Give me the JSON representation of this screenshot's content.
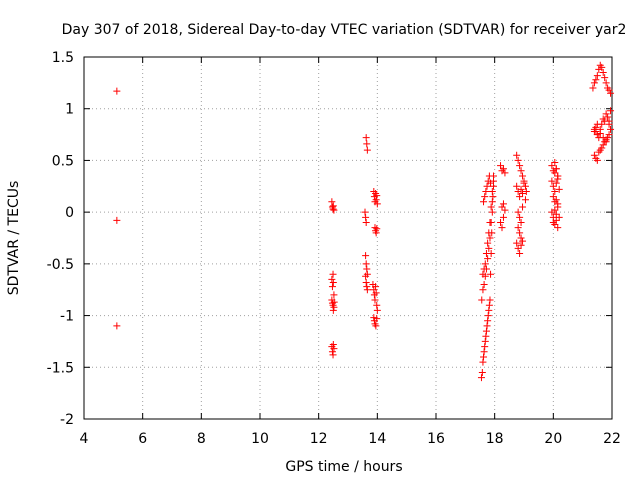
{
  "chart_data": {
    "type": "scatter",
    "title": "Day 307 of 2018, Sidereal Day-to-day VTEC variation (SDTVAR) for receiver yar2",
    "xlabel": "GPS time / hours",
    "ylabel": "SDTVAR / TECUs",
    "xlim": [
      4,
      22
    ],
    "ylim": [
      -2,
      1.5
    ],
    "x_ticks": [
      4,
      6,
      8,
      10,
      12,
      14,
      16,
      18,
      20,
      22
    ],
    "y_ticks": [
      -2,
      -1.5,
      -1,
      -0.5,
      0,
      0.5,
      1,
      1.5
    ],
    "x_tick_labels": [
      "4",
      "6",
      "8",
      "10",
      "12",
      "14",
      "16",
      "18",
      "20",
      "22"
    ],
    "y_tick_labels": [
      "-2",
      "-1.5",
      "-1",
      "-0.5",
      "0",
      "0.5",
      "1",
      "1.5"
    ],
    "grid": true,
    "marker": "+",
    "color": "#ff0000",
    "series": [
      {
        "name": "yar2",
        "x": [
          5.12,
          5.12,
          5.12,
          12.45,
          12.47,
          12.49,
          12.5,
          12.52,
          12.45,
          12.47,
          12.49,
          12.5,
          12.52,
          12.45,
          12.47,
          12.49,
          12.5,
          12.52,
          12.53,
          12.45,
          12.47,
          12.49,
          12.5,
          12.52,
          13.62,
          13.64,
          13.66,
          13.58,
          13.6,
          13.62,
          13.6,
          13.62,
          13.64,
          13.66,
          13.6,
          13.62,
          13.64,
          13.66,
          13.88,
          13.9,
          13.92,
          13.94,
          13.96,
          13.98,
          14.0,
          13.92,
          13.94,
          13.96,
          13.98,
          13.85,
          13.88,
          13.9,
          13.92,
          13.94,
          13.96,
          13.98,
          14.0,
          13.88,
          13.9,
          13.92,
          13.95,
          13.98,
          17.55,
          17.58,
          17.6,
          17.62,
          17.64,
          17.66,
          17.68,
          17.7,
          17.72,
          17.74,
          17.76,
          17.78,
          17.8,
          17.82,
          17.84,
          17.86,
          17.88,
          17.9,
          17.92,
          17.94,
          17.96,
          17.56,
          17.6,
          17.64,
          17.68,
          17.72,
          17.76,
          17.8,
          17.84,
          17.88,
          17.92,
          17.96,
          17.6,
          17.64,
          17.68,
          17.72,
          17.76,
          17.8,
          17.84,
          17.88,
          17.92,
          17.96,
          17.62,
          17.66,
          17.7,
          17.74,
          17.78,
          17.82,
          17.86,
          18.2,
          18.25,
          18.3,
          18.35,
          18.25,
          18.3,
          18.35,
          18.2,
          18.25,
          18.3,
          18.75,
          18.8,
          18.85,
          18.9,
          18.95,
          18.75,
          18.8,
          18.85,
          18.9,
          18.95,
          19.0,
          19.05,
          18.8,
          18.85,
          18.9,
          18.95,
          18.75,
          18.8,
          18.85,
          18.9,
          18.95,
          19.0,
          19.05,
          19.08,
          18.8,
          18.85,
          18.9,
          19.95,
          20.0,
          20.05,
          20.1,
          20.15,
          19.95,
          20.0,
          20.05,
          20.1,
          20.15,
          20.2,
          20.0,
          20.05,
          20.1,
          20.15,
          19.95,
          20.0,
          20.05,
          20.1,
          20.15,
          20.0,
          20.05,
          20.1,
          20.15,
          20.2,
          20.05,
          20.1,
          20.15,
          21.35,
          21.4,
          21.45,
          21.5,
          21.55,
          21.6,
          21.65,
          21.7,
          21.75,
          21.8,
          21.85,
          21.9,
          21.95,
          21.4,
          21.45,
          21.5,
          21.55,
          21.6,
          21.65,
          21.7,
          21.75,
          21.8,
          21.85,
          21.9,
          21.95,
          21.4,
          21.45,
          21.5,
          21.55,
          21.6,
          21.65,
          21.7,
          21.75,
          21.8,
          21.85,
          21.9,
          21.95,
          21.4,
          21.45,
          21.5,
          21.6,
          21.7,
          21.8,
          21.9
        ],
        "y": [
          1.17,
          -0.08,
          -1.1,
          0.1,
          0.05,
          0.03,
          0.06,
          0.02,
          -0.65,
          -0.72,
          -0.6,
          -0.68,
          -0.8,
          -0.85,
          -0.88,
          -0.9,
          -0.95,
          -0.92,
          -0.87,
          -1.3,
          -1.35,
          -1.38,
          -1.28,
          -1.32,
          0.72,
          0.66,
          0.6,
          0.0,
          -0.05,
          -0.1,
          -0.42,
          -0.5,
          -0.55,
          -0.6,
          -0.62,
          -0.68,
          -0.72,
          -0.75,
          0.2,
          0.15,
          0.1,
          0.18,
          0.12,
          0.16,
          0.08,
          -0.15,
          -0.18,
          -0.2,
          -0.16,
          -0.7,
          -0.75,
          -0.8,
          -0.85,
          -0.72,
          -0.78,
          -0.9,
          -0.95,
          -1.02,
          -1.05,
          -1.08,
          -1.1,
          -1.03,
          -1.6,
          -1.55,
          -1.45,
          -1.4,
          -1.35,
          -1.3,
          -1.25,
          -1.2,
          -1.15,
          -1.1,
          -1.05,
          -1.0,
          -0.95,
          -0.9,
          -0.85,
          -0.6,
          -0.4,
          -0.2,
          0.0,
          0.15,
          0.3,
          -0.85,
          -0.75,
          -0.7,
          -0.62,
          -0.55,
          -0.45,
          -0.35,
          -0.25,
          -0.1,
          0.1,
          0.25,
          -0.6,
          -0.55,
          -0.5,
          -0.4,
          -0.3,
          -0.2,
          -0.1,
          0.05,
          0.2,
          0.35,
          0.1,
          0.15,
          0.2,
          0.25,
          0.3,
          0.35,
          0.28,
          0.45,
          0.4,
          0.42,
          0.38,
          0.05,
          0.08,
          0.02,
          -0.1,
          -0.15,
          -0.05,
          0.55,
          0.5,
          0.45,
          0.4,
          0.35,
          0.25,
          0.2,
          0.15,
          0.22,
          0.18,
          0.28,
          0.12,
          0.0,
          -0.05,
          -0.1,
          0.05,
          -0.3,
          -0.35,
          -0.4,
          -0.32,
          -0.28,
          0.3,
          0.25,
          0.2,
          -0.15,
          -0.2,
          -0.25,
          0.45,
          0.4,
          0.48,
          0.42,
          0.35,
          0.3,
          0.25,
          0.2,
          0.28,
          0.32,
          0.22,
          0.15,
          0.1,
          0.12,
          0.08,
          0.0,
          -0.05,
          0.02,
          -0.02,
          0.05,
          -0.1,
          -0.12,
          -0.08,
          -0.15,
          -0.05,
          0.38,
          0.42,
          0.35,
          1.2,
          1.25,
          1.28,
          1.32,
          1.38,
          1.42,
          1.4,
          1.35,
          1.3,
          1.25,
          1.2,
          1.18,
          1.15,
          0.8,
          0.78,
          0.75,
          0.72,
          0.8,
          0.85,
          0.9,
          0.88,
          0.95,
          0.92,
          0.85,
          0.98,
          0.55,
          0.52,
          0.5,
          0.58,
          0.6,
          0.62,
          0.65,
          0.68,
          0.7,
          0.72,
          0.75,
          0.8,
          0.78,
          0.82,
          0.85,
          0.76,
          0.72,
          0.68,
          0.88
        ]
      }
    ]
  }
}
